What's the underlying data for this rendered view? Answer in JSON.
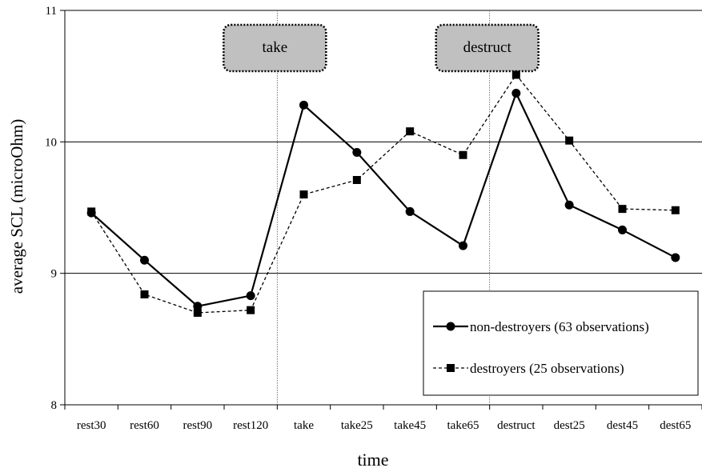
{
  "chart_data": {
    "type": "line",
    "title": "",
    "xlabel": "time",
    "ylabel": "average SCL (microOhm)",
    "ylim": [
      8,
      11
    ],
    "yticks": [
      8,
      9,
      10,
      11
    ],
    "grid": "horizontal",
    "legend_position": "bottom-right",
    "categories": [
      "rest30",
      "rest60",
      "rest90",
      "rest120",
      "take",
      "take25",
      "take45",
      "take65",
      "destruct",
      "dest25",
      "dest45",
      "dest65"
    ],
    "series": [
      {
        "name": "non-destroyers (63 observations)",
        "style": "solid",
        "marker": "circle",
        "color": "#000000",
        "values": [
          9.46,
          9.1,
          8.75,
          8.83,
          10.28,
          9.92,
          9.47,
          9.21,
          10.37,
          9.52,
          9.33,
          9.12
        ]
      },
      {
        "name": "destroyers (25 observations)",
        "style": "dashed",
        "marker": "square",
        "color": "#000000",
        "values": [
          9.47,
          8.84,
          8.7,
          8.72,
          9.6,
          9.71,
          10.08,
          9.9,
          10.51,
          10.01,
          9.49,
          9.48
        ]
      }
    ],
    "annotations": [
      {
        "text": "take",
        "category": "take",
        "box_color": "#c0c0c0"
      },
      {
        "text": "destruct",
        "category": "destruct",
        "box_color": "#c0c0c0"
      }
    ]
  }
}
